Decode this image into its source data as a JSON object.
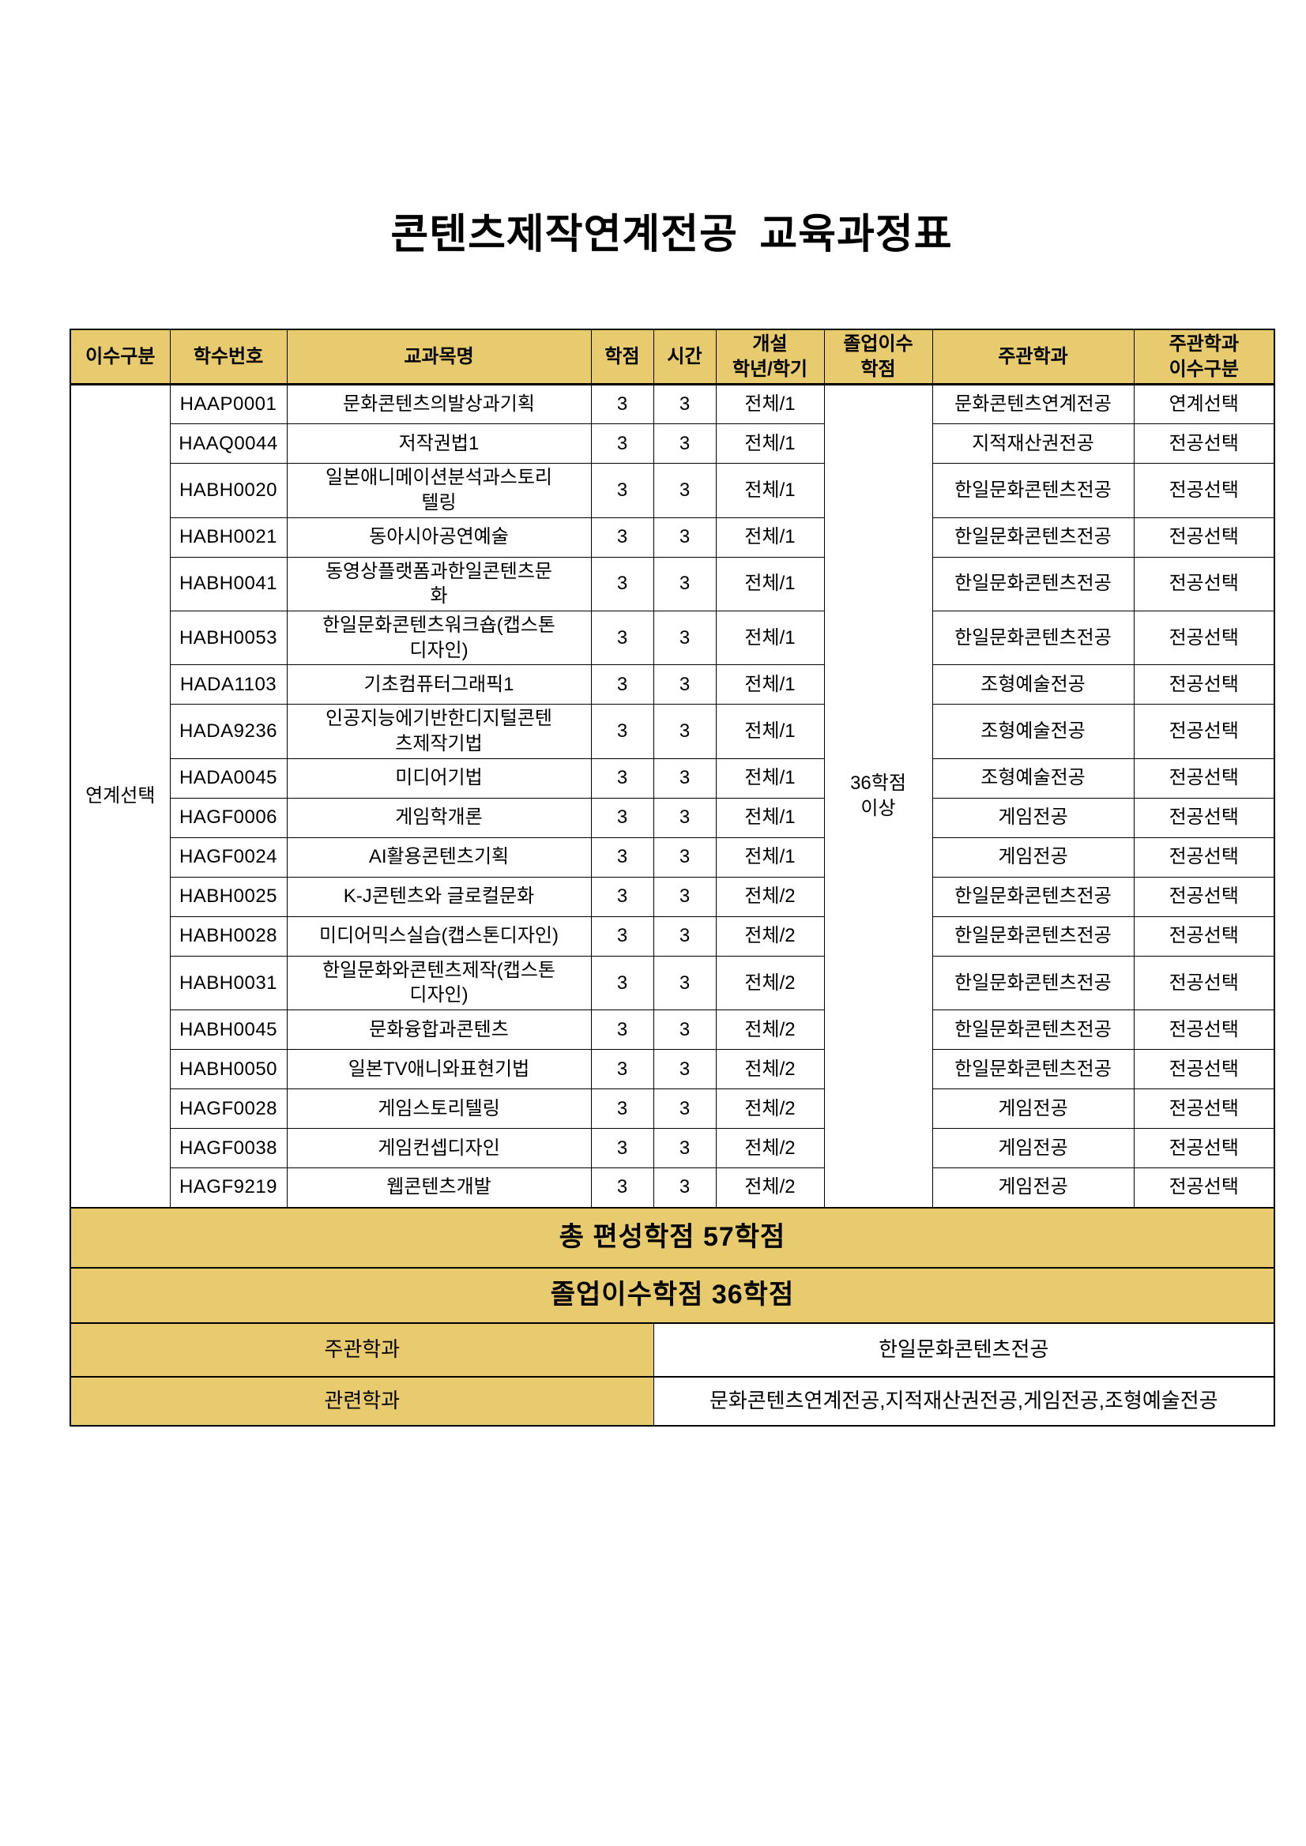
{
  "page": {
    "title": "콘텐츠제작연계전공 교육과정표"
  },
  "colors": {
    "header_bg": "#E9CB6F",
    "border": "#000000",
    "page_bg": "#FFFFFF",
    "text": "#000000"
  },
  "table": {
    "headers": [
      "이수구분",
      "학수번호",
      "교과목명",
      "학점",
      "시간",
      "개설\n학년/학기",
      "졸업이수\n학점",
      "주관학과",
      "주관학과\n이수구분"
    ],
    "merged": {
      "category": "연계선택",
      "graduation_credits": "36학점\n이상"
    },
    "rows": [
      {
        "code": "HAAP0001",
        "name": "문화콘텐츠의발상과기획",
        "credits": 3,
        "hours": 3,
        "semester": "전체/1",
        "department": "문화콘텐츠연계전공",
        "dept_category": "연계선택"
      },
      {
        "code": "HAAQ0044",
        "name": "저작권법1",
        "credits": 3,
        "hours": 3,
        "semester": "전체/1",
        "department": "지적재산권전공",
        "dept_category": "전공선택"
      },
      {
        "code": "HABH0020",
        "name": "일본애니메이션분석과스토리\n텔링",
        "credits": 3,
        "hours": 3,
        "semester": "전체/1",
        "department": "한일문화콘텐츠전공",
        "dept_category": "전공선택"
      },
      {
        "code": "HABH0021",
        "name": "동아시아공연예술",
        "credits": 3,
        "hours": 3,
        "semester": "전체/1",
        "department": "한일문화콘텐츠전공",
        "dept_category": "전공선택"
      },
      {
        "code": "HABH0041",
        "name": "동영상플랫폼과한일콘텐츠문\n화",
        "credits": 3,
        "hours": 3,
        "semester": "전체/1",
        "department": "한일문화콘텐츠전공",
        "dept_category": "전공선택"
      },
      {
        "code": "HABH0053",
        "name": "한일문화콘텐츠워크숍(캡스톤\n디자인)",
        "credits": 3,
        "hours": 3,
        "semester": "전체/1",
        "department": "한일문화콘텐츠전공",
        "dept_category": "전공선택"
      },
      {
        "code": "HADA1103",
        "name": "기초컴퓨터그래픽1",
        "credits": 3,
        "hours": 3,
        "semester": "전체/1",
        "department": "조형예술전공",
        "dept_category": "전공선택"
      },
      {
        "code": "HADA9236",
        "name": "인공지능에기반한디지털콘텐\n츠제작기법",
        "credits": 3,
        "hours": 3,
        "semester": "전체/1",
        "department": "조형예술전공",
        "dept_category": "전공선택"
      },
      {
        "code": "HADA0045",
        "name": "미디어기법",
        "credits": 3,
        "hours": 3,
        "semester": "전체/1",
        "department": "조형예술전공",
        "dept_category": "전공선택"
      },
      {
        "code": "HAGF0006",
        "name": "게임학개론",
        "credits": 3,
        "hours": 3,
        "semester": "전체/1",
        "department": "게임전공",
        "dept_category": "전공선택"
      },
      {
        "code": "HAGF0024",
        "name": "AI활용콘텐츠기획",
        "credits": 3,
        "hours": 3,
        "semester": "전체/1",
        "department": "게임전공",
        "dept_category": "전공선택"
      },
      {
        "code": "HABH0025",
        "name": "K-J콘텐츠와 글로컬문화",
        "credits": 3,
        "hours": 3,
        "semester": "전체/2",
        "department": "한일문화콘텐츠전공",
        "dept_category": "전공선택"
      },
      {
        "code": "HABH0028",
        "name": "미디어믹스실습(캡스톤디자인)",
        "credits": 3,
        "hours": 3,
        "semester": "전체/2",
        "department": "한일문화콘텐츠전공",
        "dept_category": "전공선택"
      },
      {
        "code": "HABH0031",
        "name": "한일문화와콘텐츠제작(캡스톤\n디자인)",
        "credits": 3,
        "hours": 3,
        "semester": "전체/2",
        "department": "한일문화콘텐츠전공",
        "dept_category": "전공선택"
      },
      {
        "code": "HABH0045",
        "name": "문화융합과콘텐츠",
        "credits": 3,
        "hours": 3,
        "semester": "전체/2",
        "department": "한일문화콘텐츠전공",
        "dept_category": "전공선택"
      },
      {
        "code": "HABH0050",
        "name": "일본TV애니와표현기법",
        "credits": 3,
        "hours": 3,
        "semester": "전체/2",
        "department": "한일문화콘텐츠전공",
        "dept_category": "전공선택"
      },
      {
        "code": "HAGF0028",
        "name": "게임스토리텔링",
        "credits": 3,
        "hours": 3,
        "semester": "전체/2",
        "department": "게임전공",
        "dept_category": "전공선택"
      },
      {
        "code": "HAGF0038",
        "name": "게임컨셉디자인",
        "credits": 3,
        "hours": 3,
        "semester": "전체/2",
        "department": "게임전공",
        "dept_category": "전공선택"
      },
      {
        "code": "HAGF9219",
        "name": "웹콘텐츠개발",
        "credits": 3,
        "hours": 3,
        "semester": "전체/2",
        "department": "게임전공",
        "dept_category": "전공선택"
      }
    ],
    "footer": {
      "total_label": "총 편성학점 57학점",
      "graduation_label": "졸업이수학점 36학점",
      "organizing_dept_label": "주관학과",
      "organizing_dept_value": "한일문화콘텐츠전공",
      "related_dept_label": "관련학과",
      "related_dept_value": "문화콘텐츠연계전공,지적재산권전공,게임전공,조형예술전공"
    }
  }
}
